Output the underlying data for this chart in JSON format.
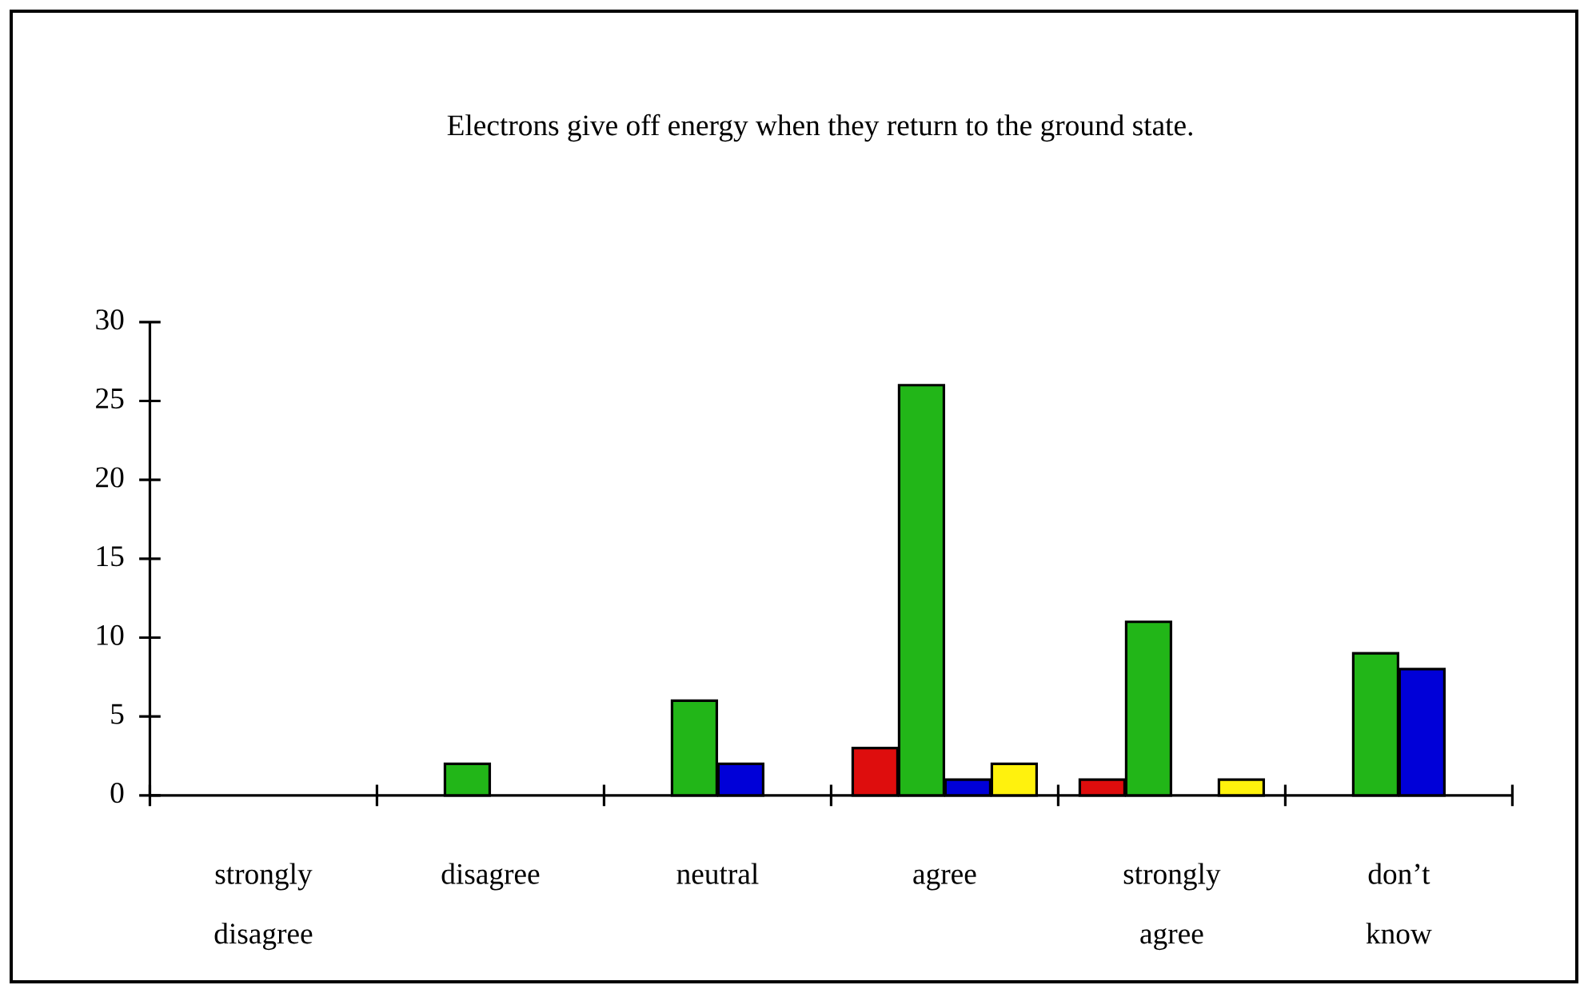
{
  "chart_data": {
    "type": "bar",
    "title": "Electrons give off energy when they return to the ground state.",
    "categories": [
      "strongly disagree",
      "disagree",
      "neutral",
      "agree",
      "strongly agree",
      "don’t know"
    ],
    "series": [
      {
        "color": "#de0d0d",
        "values": [
          null,
          null,
          null,
          3,
          1,
          null
        ]
      },
      {
        "color": "#22b618",
        "values": [
          null,
          2,
          6,
          26,
          11,
          9
        ]
      },
      {
        "color": "#0000d8",
        "values": [
          null,
          null,
          2,
          1,
          null,
          8
        ]
      },
      {
        "color": "#fff20d",
        "values": [
          null,
          null,
          null,
          2,
          1,
          null
        ]
      }
    ],
    "ylim": [
      0,
      30
    ],
    "yticks": [
      0,
      5,
      10,
      15,
      20,
      25,
      30
    ]
  }
}
